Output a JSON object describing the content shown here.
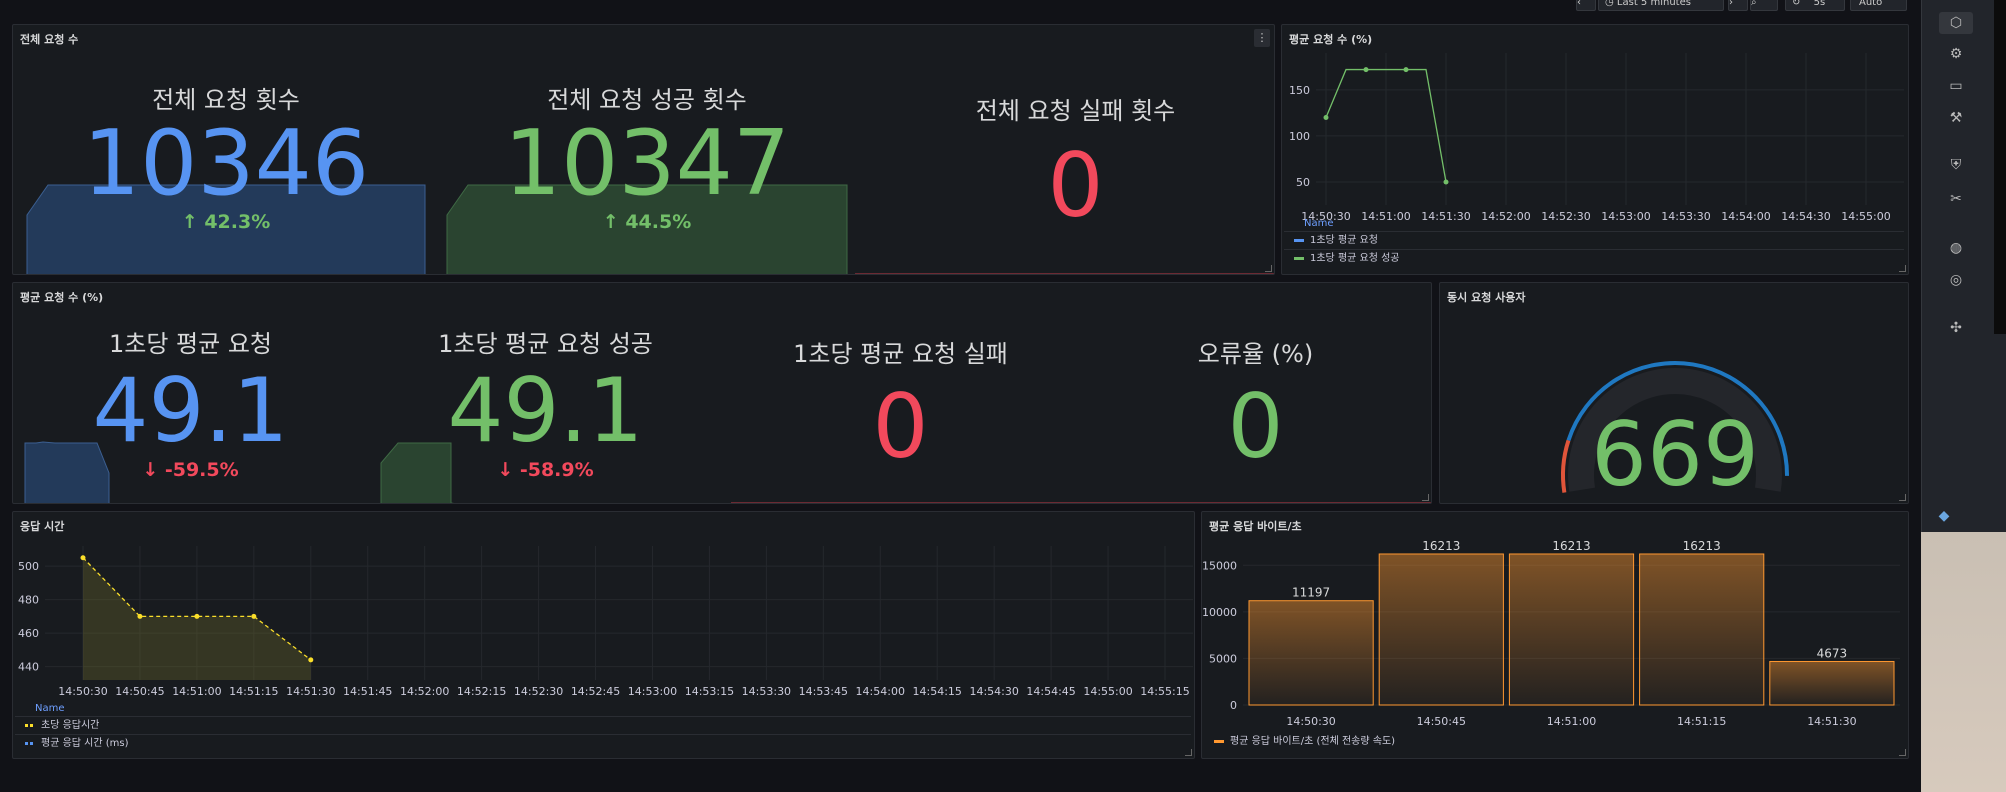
{
  "topbar": {
    "time_range": "Last 5 minutes",
    "refresh": "5s",
    "auto": "Auto"
  },
  "panels": {
    "total_requests": {
      "title": "전체 요청 수",
      "stats": [
        {
          "label": "전체 요청 횟수",
          "value": "10346",
          "delta": "42.3%",
          "trend": "up"
        },
        {
          "label": "전체 요청 성공 횟수",
          "value": "10347",
          "delta": "44.5%",
          "trend": "up"
        },
        {
          "label": "전체 요청 실패 횟수",
          "value": "0"
        }
      ]
    },
    "avg_req_chart": {
      "title": "평균 요청 수 (%)",
      "legend_header": "Name",
      "legend": [
        "1초당 평균 요청",
        "1초당 평균 요청 성공"
      ]
    },
    "avg_req_stats": {
      "title": "평균 요청 수 (%)",
      "stats": [
        {
          "label": "1초당 평균 요청",
          "value": "49.1",
          "delta": "-59.5%",
          "trend": "down"
        },
        {
          "label": "1초당 평균 요청 성공",
          "value": "49.1",
          "delta": "-58.9%",
          "trend": "down"
        },
        {
          "label": "1초당 평균 요청 실패",
          "value": "0"
        },
        {
          "label": "오류율 (%)",
          "value": "0"
        }
      ]
    },
    "concurrent_users": {
      "title": "동시 요청 사용자",
      "value": "669",
      "gauge_fraction": 0.95
    },
    "response_time": {
      "title": "응답 시간",
      "legend_header": "Name",
      "legend": [
        "초당 응답시간",
        "평균 응답 시간 (ms)"
      ]
    },
    "avg_bytes": {
      "title": "평균 응답 바이트/초",
      "legend": [
        "평균 응답 바이트/초 (전체 전송량 속도)"
      ]
    }
  },
  "chart_data": [
    {
      "type": "line",
      "x": [
        "14:50:30",
        "14:50:40",
        "14:50:50",
        "14:51:00",
        "14:51:10",
        "14:51:20",
        "14:51:30"
      ],
      "series": [
        {
          "name": "1초당 평균 요청 성공",
          "values": [
            120,
            172,
            172,
            172,
            172,
            172,
            50
          ]
        }
      ],
      "xticks": [
        "14:50:30",
        "14:51:00",
        "14:51:30",
        "14:52:00",
        "14:52:30",
        "14:53:00",
        "14:53:30",
        "14:54:00",
        "14:54:30",
        "14:55:00"
      ],
      "yticks": [
        50,
        100,
        150
      ],
      "ylim": [
        25,
        190
      ],
      "legend": "bottom",
      "color": "#73bf69"
    },
    {
      "type": "line",
      "x": [
        "14:50:30",
        "14:50:45",
        "14:51:00",
        "14:51:15",
        "14:51:30"
      ],
      "series": [
        {
          "name": "초당 응답시간",
          "values": [
            505,
            470,
            470,
            470,
            444
          ]
        }
      ],
      "xticks": [
        "14:50:30",
        "14:50:45",
        "14:51:00",
        "14:51:15",
        "14:51:30",
        "14:51:45",
        "14:52:00",
        "14:52:15",
        "14:52:30",
        "14:52:45",
        "14:53:00",
        "14:53:15",
        "14:53:30",
        "14:53:45",
        "14:54:00",
        "14:54:15",
        "14:54:30",
        "14:54:45",
        "14:55:00",
        "14:55:15"
      ],
      "yticks": [
        440,
        460,
        480,
        500
      ],
      "ylim": [
        432,
        512
      ],
      "legend": "bottom",
      "color": "#fade2a"
    },
    {
      "type": "bar",
      "categories": [
        "14:50:30",
        "14:50:45",
        "14:51:00",
        "14:51:15",
        "14:51:30"
      ],
      "values": [
        11197,
        16213,
        16213,
        16213,
        4673
      ],
      "yticks": [
        0,
        5000,
        10000,
        15000
      ],
      "ylim": [
        0,
        17500
      ],
      "legend": "bottom",
      "color": "#ff9830"
    }
  ]
}
